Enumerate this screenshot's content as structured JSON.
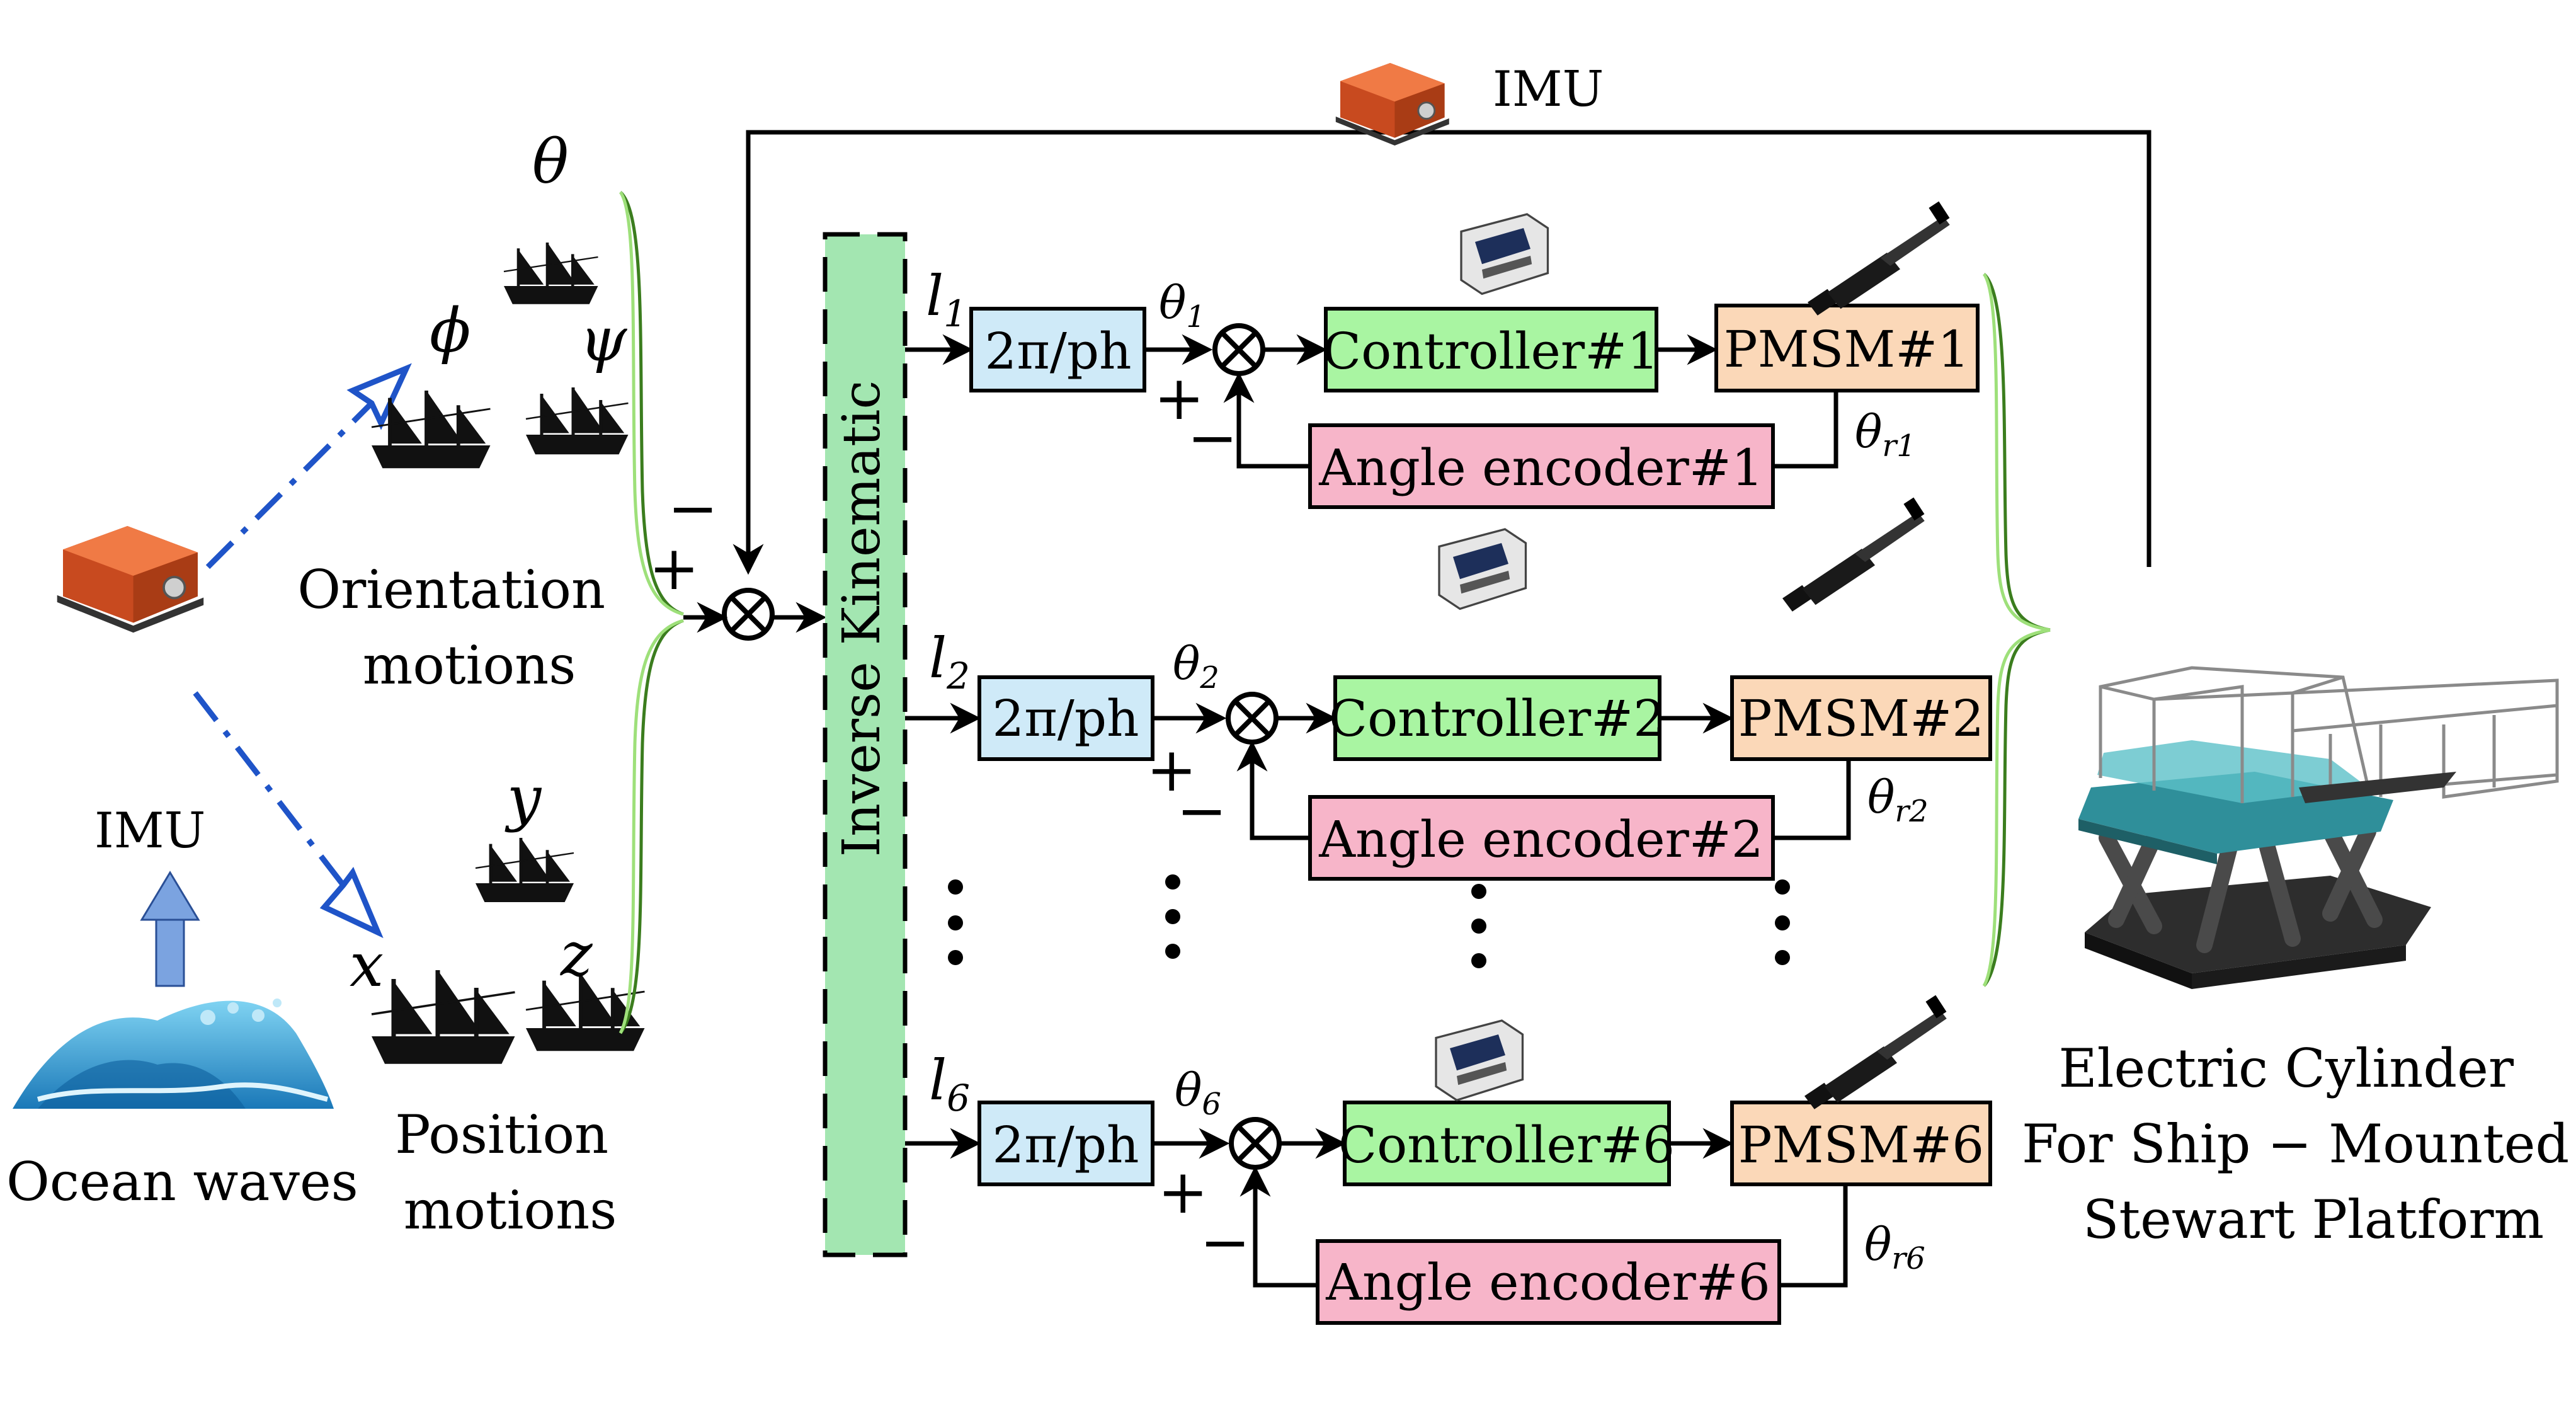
{
  "imu_top_label": "IMU",
  "imu_left_label": "IMU",
  "ocean_label": "Ocean waves",
  "orientation_label": [
    "Orientation",
    "motions"
  ],
  "position_label": [
    "Position",
    "motions"
  ],
  "orientation_symbols": {
    "theta": "θ",
    "phi": "ϕ",
    "psi": "ψ"
  },
  "position_symbols": {
    "x": "x",
    "y": "y",
    "z": "z"
  },
  "sum_signs": {
    "minus": "−",
    "plus": "+"
  },
  "inverse_kinematic_label": "Inverse Kinematic",
  "channels": [
    {
      "l": "l",
      "l_sub": "1",
      "theta": "θ",
      "theta_sub": "1",
      "gain": "2π/ph",
      "controller": "Controller#1",
      "motor": "PMSM#1",
      "encoder": "Angle encoder#1",
      "theta_r": "θ",
      "theta_r_sub": "r1"
    },
    {
      "l": "l",
      "l_sub": "2",
      "theta": "θ",
      "theta_sub": "2",
      "gain": "2π/ph",
      "controller": "Controller#2",
      "motor": "PMSM#2",
      "encoder": "Angle encoder#2",
      "theta_r": "θ",
      "theta_r_sub": "r2"
    },
    {
      "l": "l",
      "l_sub": "6",
      "theta": "θ",
      "theta_sub": "6",
      "gain": "2π/ph",
      "controller": "Controller#6",
      "motor": "PMSM#6",
      "encoder": "Angle encoder#6",
      "theta_r": "θ",
      "theta_r_sub": "r6"
    }
  ],
  "channel_sum_signs": {
    "plus": "+",
    "minus": "−"
  },
  "platform_label": [
    "Electric Cylinder",
    "For Ship − Mounted",
    "Stewart Platform"
  ],
  "colors": {
    "inverse_kinematic": "#a3e6b1",
    "gain_box": "#cfeaf8",
    "controller_box": "#a9f5a2",
    "motor_box": "#fbd8b8",
    "encoder_box": "#f7b5c9",
    "imu_body": "#e8632f",
    "arrow_blue": "#1f54c8",
    "up_arrow": "#7ba3e0",
    "brace": "#8bd36b"
  }
}
